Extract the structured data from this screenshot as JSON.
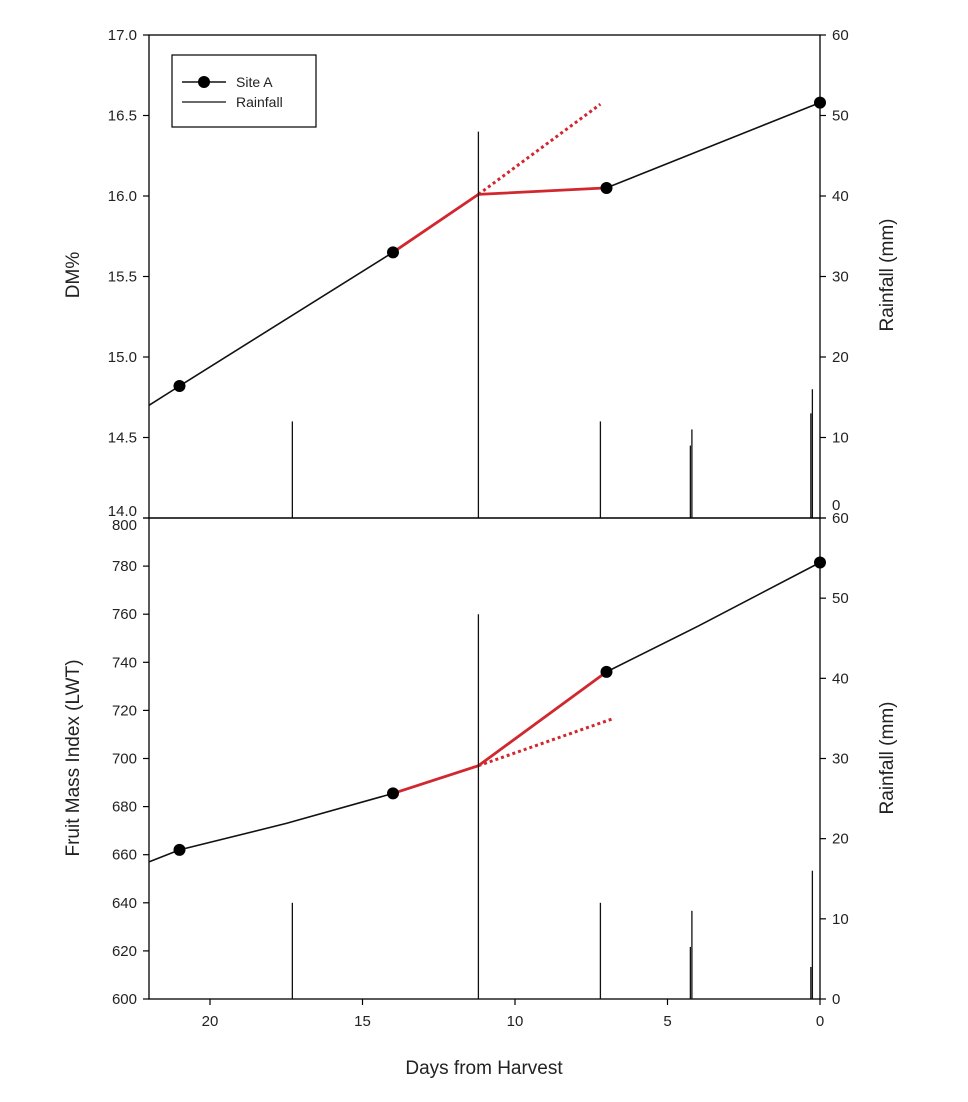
{
  "colors": {
    "site_line": "#111111",
    "site_marker": "#000000",
    "rain_bar": "#111111",
    "highlight_line": "#d1272e",
    "axis": "#000000",
    "text": "#222222"
  },
  "chart_data": [
    {
      "type": "line",
      "panel": "top",
      "title": "",
      "xlabel": "",
      "ylabel": "DM%",
      "y2label": "Rainfall (mm)",
      "xlim": [
        22,
        0
      ],
      "ylim": [
        14.0,
        17.0
      ],
      "y2lim": [
        0,
        60
      ],
      "x_reversed": true,
      "yticks": [
        "14.0",
        "14.5",
        "15.0",
        "15.5",
        "16.0",
        "16.5",
        "17.0"
      ],
      "y2ticks": [
        "0",
        "10",
        "20",
        "30",
        "40",
        "50",
        "60"
      ],
      "legend": {
        "position": "top-left",
        "entries": [
          "Site A",
          "Rainfall"
        ]
      },
      "series": [
        {
          "name": "Site A",
          "kind": "points",
          "x": [
            21,
            14,
            7,
            0
          ],
          "y": [
            14.82,
            15.65,
            16.05,
            16.58
          ]
        },
        {
          "kind": "line",
          "x": [
            22,
            21,
            14
          ],
          "y": [
            14.7,
            14.82,
            15.65
          ]
        },
        {
          "kind": "line",
          "x": [
            7,
            0
          ],
          "y": [
            16.05,
            16.58
          ]
        },
        {
          "kind": "highlight",
          "x": [
            14,
            11.2,
            7
          ],
          "y": [
            15.65,
            16.01,
            16.05
          ]
        },
        {
          "kind": "dotted",
          "x": [
            11.2,
            7.2
          ],
          "y": [
            16.01,
            16.57
          ]
        },
        {
          "name": "Rainfall",
          "kind": "rain",
          "axis": "y2",
          "x": [
            17.3,
            11.2,
            7.2,
            4.2,
            4.25,
            0.25,
            0.3
          ],
          "y": [
            12,
            48,
            12,
            11,
            9,
            16,
            13
          ]
        }
      ]
    },
    {
      "type": "line",
      "panel": "bottom",
      "title": "",
      "xlabel": "Days from Harvest",
      "ylabel": "Fruit Mass Index (LWT)",
      "y2label": "Rainfall (mm)",
      "xlim": [
        22,
        0
      ],
      "ylim": [
        600,
        800
      ],
      "y2lim": [
        0,
        60
      ],
      "x_reversed": true,
      "xticks": [
        "20",
        "15",
        "10",
        "5",
        "0"
      ],
      "xtick_values": [
        20,
        15,
        10,
        5,
        0
      ],
      "yticks": [
        "600",
        "620",
        "640",
        "660",
        "680",
        "700",
        "720",
        "740",
        "760",
        "780",
        "800"
      ],
      "y2ticks": [
        "0",
        "10",
        "20",
        "30",
        "40",
        "50",
        "60"
      ],
      "series": [
        {
          "name": "Site A",
          "kind": "points",
          "x": [
            21,
            14,
            7,
            0
          ],
          "y": [
            662,
            685.5,
            736,
            781.5
          ]
        },
        {
          "kind": "line",
          "x": [
            22,
            21,
            17.5,
            14
          ],
          "y": [
            657,
            662,
            673,
            685.5
          ]
        },
        {
          "kind": "line",
          "x": [
            7,
            4,
            0
          ],
          "y": [
            736,
            755,
            781.5
          ]
        },
        {
          "kind": "highlight",
          "x": [
            14,
            11.2,
            7
          ],
          "y": [
            685.5,
            697,
            736
          ]
        },
        {
          "kind": "dotted",
          "x": [
            11.2,
            6.8
          ],
          "y": [
            697,
            716.5
          ]
        },
        {
          "name": "Rainfall",
          "kind": "rain",
          "axis": "y2",
          "x": [
            17.3,
            11.2,
            7.2,
            4.2,
            4.25,
            0.25,
            0.3
          ],
          "y": [
            12,
            48,
            12,
            11,
            6.5,
            16,
            4
          ]
        }
      ]
    }
  ]
}
